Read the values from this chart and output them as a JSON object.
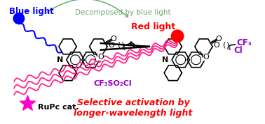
{
  "bg_color": "#ffffff",
  "blue_light_label": "Blue light",
  "blue_light_color": "#0000ff",
  "red_light_label": "Red light",
  "red_light_color": "#ff0000",
  "decomposed_label": "Decomposed by blue light",
  "decomposed_color": "#6aaa6a",
  "cf3so2cl_label": "CF₃SO₂Cl",
  "cf3so2cl_color": "#9900cc",
  "cf3_label": "CF₃",
  "cf3_color": "#9900cc",
  "cl_label": "Cl",
  "cl_color": "#9900cc",
  "rupc_label": "RuPc cat.",
  "rupc_color": "#000000",
  "selective_line1": "Selective activation by",
  "selective_line2": "longer-wavelength light",
  "selective_color": "#ff0000",
  "star_color": "#ff00cc",
  "figsize": [
    3.78,
    1.78
  ],
  "dpi": 100
}
